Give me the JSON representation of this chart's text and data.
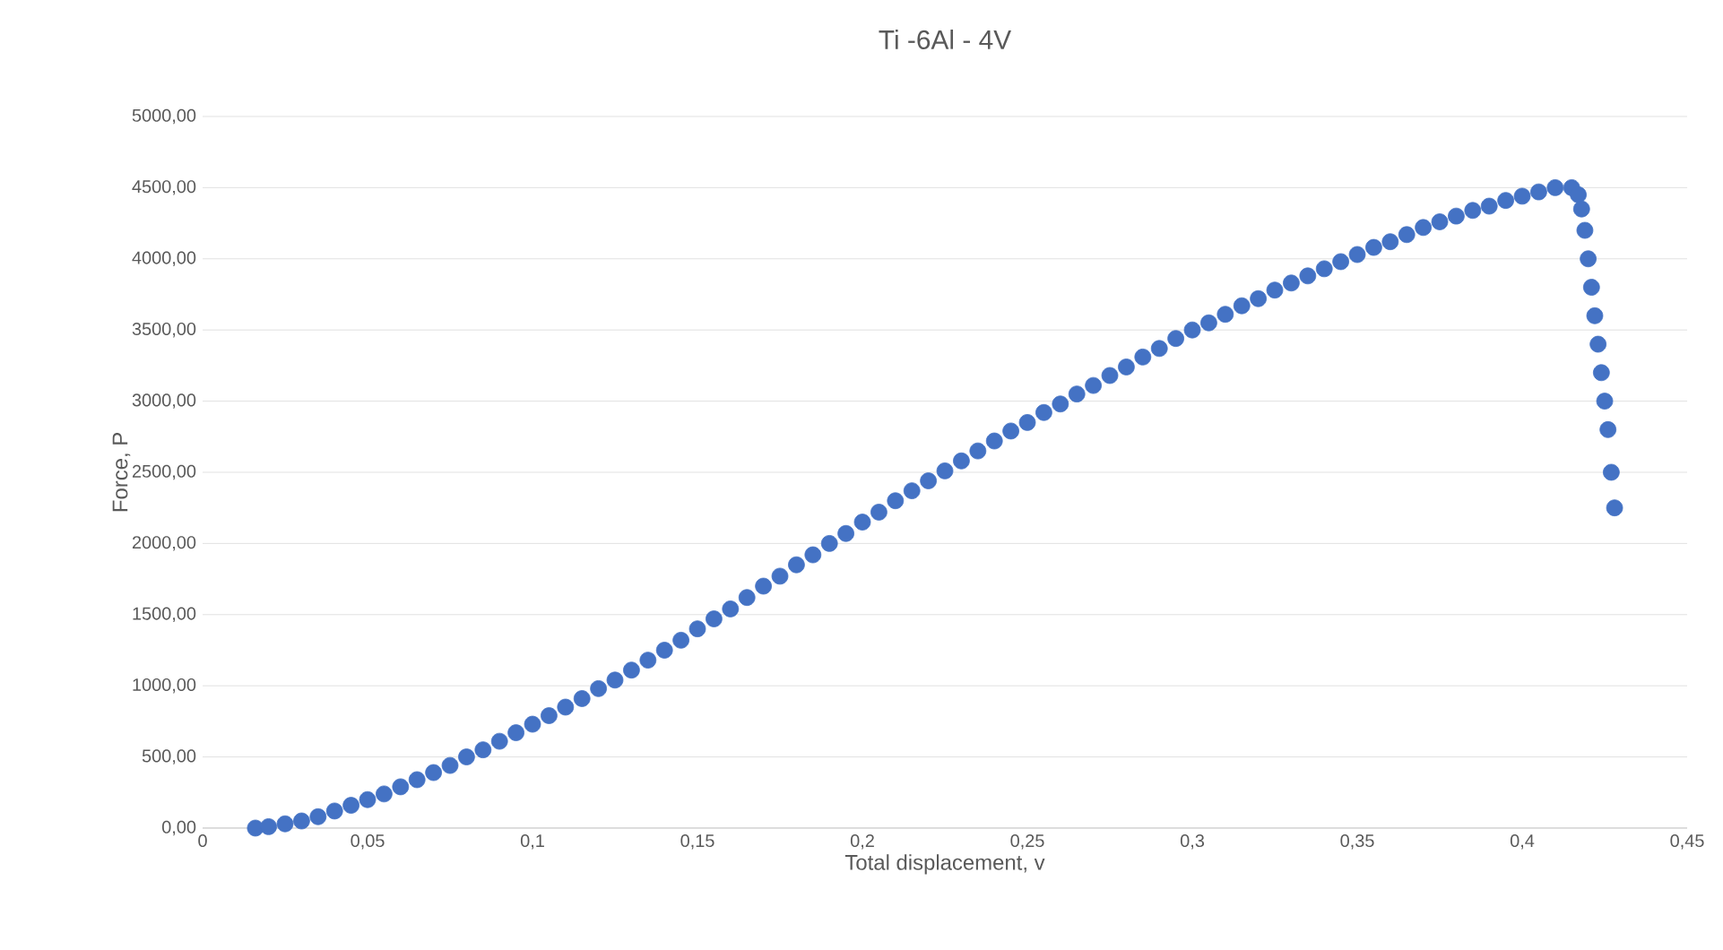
{
  "chart_data": {
    "type": "scatter",
    "title": "Ti -6Al - 4V",
    "xlabel": "Total displacement, v",
    "ylabel": "Force, P",
    "xlim": [
      0,
      0.45
    ],
    "ylim": [
      0,
      5000
    ],
    "xticks": [
      0,
      {
        "value": 0.05,
        "label": "0,05"
      },
      {
        "value": 0.1,
        "label": "0,1"
      },
      {
        "value": 0.15,
        "label": "0,15"
      },
      {
        "value": 0.2,
        "label": "0,2"
      },
      {
        "value": 0.25,
        "label": "0,25"
      },
      {
        "value": 0.3,
        "label": "0,3"
      },
      {
        "value": 0.35,
        "label": "0,35"
      },
      {
        "value": 0.4,
        "label": "0,4"
      },
      {
        "value": 0.45,
        "label": "0,45"
      }
    ],
    "yticks": [
      {
        "value": 0,
        "label": "0,00"
      },
      {
        "value": 500,
        "label": "500,00"
      },
      {
        "value": 1000,
        "label": "1000,00"
      },
      {
        "value": 1500,
        "label": "1500,00"
      },
      {
        "value": 2000,
        "label": "2000,00"
      },
      {
        "value": 2500,
        "label": "2500,00"
      },
      {
        "value": 3000,
        "label": "3000,00"
      },
      {
        "value": 3500,
        "label": "3500,00"
      },
      {
        "value": 4000,
        "label": "4000,00"
      },
      {
        "value": 4500,
        "label": "4500,00"
      },
      {
        "value": 5000,
        "label": "5000,00"
      }
    ],
    "grid": "y",
    "marker": "circle",
    "series": [
      {
        "color": "#4472c4",
        "x": [
          0.016,
          0.02,
          0.025,
          0.03,
          0.035,
          0.04,
          0.045,
          0.05,
          0.055,
          0.06,
          0.065,
          0.07,
          0.075,
          0.08,
          0.085,
          0.09,
          0.095,
          0.1,
          0.105,
          0.11,
          0.115,
          0.12,
          0.125,
          0.13,
          0.135,
          0.14,
          0.145,
          0.15,
          0.155,
          0.16,
          0.165,
          0.17,
          0.175,
          0.18,
          0.185,
          0.19,
          0.195,
          0.2,
          0.205,
          0.21,
          0.215,
          0.22,
          0.225,
          0.23,
          0.235,
          0.24,
          0.245,
          0.25,
          0.255,
          0.26,
          0.265,
          0.27,
          0.275,
          0.28,
          0.285,
          0.29,
          0.295,
          0.3,
          0.305,
          0.31,
          0.315,
          0.32,
          0.325,
          0.33,
          0.335,
          0.34,
          0.345,
          0.35,
          0.355,
          0.36,
          0.365,
          0.37,
          0.375,
          0.38,
          0.385,
          0.39,
          0.395,
          0.4,
          0.405,
          0.41,
          0.415,
          0.417,
          0.418,
          0.419,
          0.42,
          0.421,
          0.422,
          0.423,
          0.424,
          0.425,
          0.426,
          0.427,
          0.428
        ],
        "values": [
          0,
          10,
          30,
          50,
          80,
          120,
          160,
          200,
          240,
          290,
          340,
          390,
          440,
          500,
          550,
          610,
          670,
          730,
          790,
          850,
          910,
          980,
          1040,
          1110,
          1180,
          1250,
          1320,
          1400,
          1470,
          1540,
          1620,
          1700,
          1770,
          1850,
          1920,
          2000,
          2070,
          2150,
          2220,
          2300,
          2370,
          2440,
          2510,
          2580,
          2650,
          2720,
          2790,
          2850,
          2920,
          2980,
          3050,
          3110,
          3180,
          3240,
          3310,
          3370,
          3440,
          3500,
          3550,
          3610,
          3670,
          3720,
          3780,
          3830,
          3880,
          3930,
          3980,
          4030,
          4080,
          4120,
          4170,
          4220,
          4260,
          4300,
          4340,
          4370,
          4410,
          4440,
          4470,
          4500,
          4500,
          4450,
          4350,
          4200,
          4000,
          3800,
          3600,
          3400,
          3200,
          3000,
          2800,
          2500,
          2250
        ]
      }
    ]
  }
}
